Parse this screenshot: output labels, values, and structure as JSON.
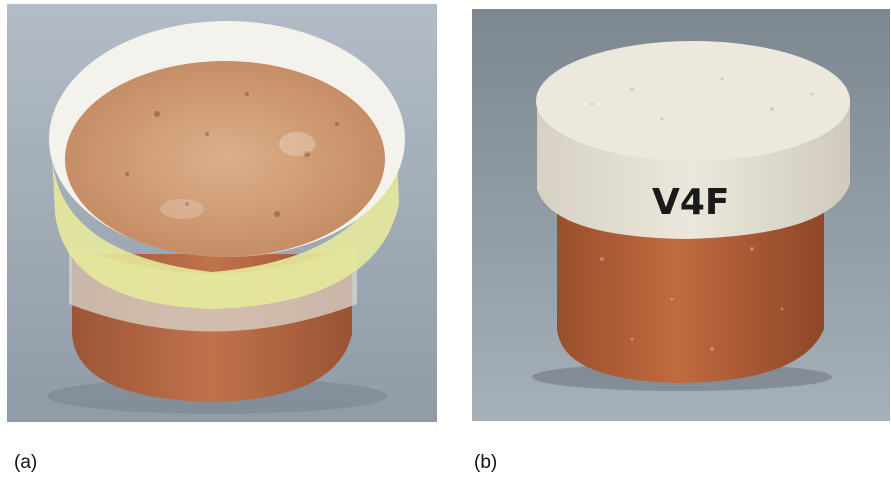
{
  "panels": [
    {
      "id": "a",
      "caption": "(a)",
      "description_icon": "brick-sample-with-tape-collar"
    },
    {
      "id": "b",
      "caption": "(b)",
      "description_icon": "brick-sample-with-white-coating",
      "marking": "V4F"
    }
  ],
  "colors": {
    "background_table": "#9aa6b1",
    "brick": "#b86a45",
    "brick_top": "#d2a27c",
    "coating": "#e6e2d6",
    "tape": "#e8ec9a"
  }
}
